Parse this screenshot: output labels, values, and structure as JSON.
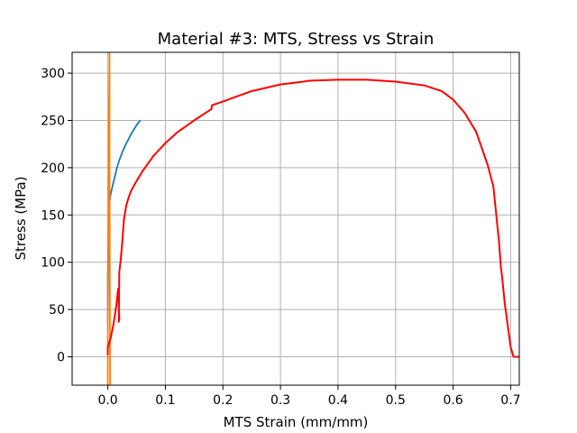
{
  "chart_data": {
    "type": "line",
    "title": "Material #3: MTS, Stress vs Strain",
    "xlabel": "MTS Strain (mm/mm)",
    "ylabel": "Stress (MPa)",
    "xlim": [
      -0.062,
      0.715
    ],
    "ylim": [
      -30,
      322
    ],
    "xticks": [
      0.0,
      0.1,
      0.2,
      0.3,
      0.4,
      0.5,
      0.6,
      0.7
    ],
    "xtick_labels": [
      "0.0",
      "0.1",
      "0.2",
      "0.3",
      "0.4",
      "0.5",
      "0.6",
      "0.7"
    ],
    "yticks": [
      0,
      50,
      100,
      150,
      200,
      250,
      300
    ],
    "ytick_labels": [
      "0",
      "50",
      "100",
      "150",
      "200",
      "250",
      "300"
    ],
    "grid": true,
    "series": [
      {
        "color": "#1f77b4",
        "x": [
          0.0,
          0.0,
          0.001,
          0.002,
          0.003,
          0.005,
          0.008,
          0.012,
          0.016,
          0.02,
          0.025,
          0.03,
          0.035,
          0.04,
          0.045,
          0.05,
          0.055,
          0.057
        ],
        "y": [
          90,
          35,
          120,
          150,
          163,
          172,
          180,
          190,
          200,
          208,
          216,
          223,
          229,
          235,
          240,
          245,
          249,
          250
        ]
      },
      {
        "color": "#ff7f0e",
        "x": [
          0.0,
          0.0,
          0.001,
          0.002,
          0.003,
          0.003,
          0.004
        ],
        "y": [
          -30,
          80,
          180,
          260,
          322,
          200,
          -30
        ]
      },
      {
        "color": "#ff0000",
        "x": [
          0.0,
          0.0,
          0.005,
          0.01,
          0.015,
          0.018,
          0.02,
          0.019,
          0.02,
          0.021,
          0.022,
          0.025,
          0.028,
          0.032,
          0.036,
          0.04,
          0.05,
          0.06,
          0.08,
          0.1,
          0.12,
          0.15,
          0.18,
          0.181,
          0.2,
          0.25,
          0.3,
          0.34,
          0.35,
          0.4,
          0.45,
          0.5,
          0.55,
          0.58,
          0.6,
          0.62,
          0.64,
          0.66,
          0.67,
          0.68,
          0.683,
          0.685,
          0.69,
          0.7,
          0.705,
          0.71,
          0.715
        ],
        "y": [
          2,
          10,
          20,
          35,
          55,
          72,
          40,
          37,
          90,
          95,
          100,
          120,
          145,
          160,
          168,
          175,
          186,
          196,
          213,
          226,
          237,
          250,
          262,
          266,
          270,
          281,
          288,
          291,
          292,
          293,
          293,
          291,
          287,
          281,
          272,
          258,
          238,
          203,
          180,
          120,
          95,
          85,
          55,
          10,
          0,
          0,
          0
        ]
      }
    ]
  }
}
